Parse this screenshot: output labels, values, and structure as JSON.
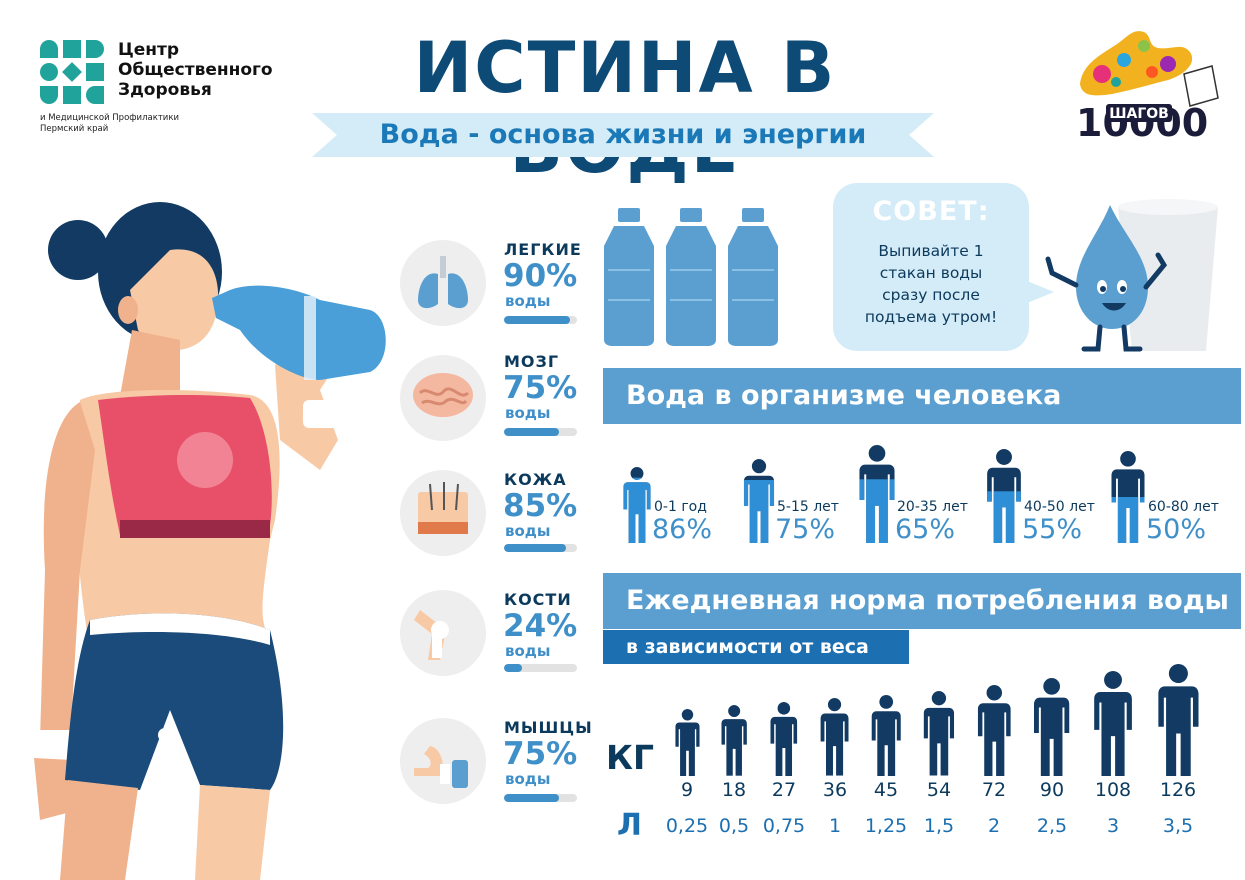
{
  "header": {
    "org_name_lines": [
      "Центр",
      "Общественного",
      "Здоровья"
    ],
    "org_sub_lines": [
      "и Медицинской Профилактики",
      "Пермский край"
    ],
    "title": "ИСТИНА В ВОДЕ",
    "subtitle": "Вода - основа жизни и энергии",
    "steps_logo_number": "10000",
    "steps_logo_word": "ШАГОВ"
  },
  "organs": [
    {
      "name": "ЛЕГКИЕ",
      "percent": "90%",
      "unit": "воды",
      "fill": 0.9
    },
    {
      "name": "МОЗГ",
      "percent": "75%",
      "unit": "воды",
      "fill": 0.75
    },
    {
      "name": "КОЖА",
      "percent": "85%",
      "unit": "воды",
      "fill": 0.85
    },
    {
      "name": "КОСТИ",
      "percent": "24%",
      "unit": "воды",
      "fill": 0.24
    },
    {
      "name": "МЫШЦЫ",
      "percent": "75%",
      "unit": "воды",
      "fill": 0.75
    }
  ],
  "tip": {
    "title": "СОВЕТ:",
    "lines": [
      "Выпивайте 1",
      "стакан воды",
      "сразу после",
      "подъема утром!"
    ]
  },
  "body_water": {
    "title": "Вода в организме человека",
    "groups": [
      {
        "age": "0-1 год",
        "percent": "86%",
        "fill": 0.86
      },
      {
        "age": "5-15 лет",
        "percent": "75%",
        "fill": 0.75
      },
      {
        "age": "20-35 лет",
        "percent": "65%",
        "fill": 0.65
      },
      {
        "age": "40-50 лет",
        "percent": "55%",
        "fill": 0.55
      },
      {
        "age": "60-80 лет",
        "percent": "50%",
        "fill": 0.5
      }
    ]
  },
  "daily_norm": {
    "title": "Ежедневная норма потребления воды",
    "subtitle": "в зависимости от веса",
    "kg_label": "КГ",
    "l_label": "Л",
    "kg": [
      "9",
      "18",
      "27",
      "36",
      "45",
      "54",
      "72",
      "90",
      "108",
      "126"
    ],
    "liters": [
      "0,25",
      "0,5",
      "0,75",
      "1",
      "1,25",
      "1,5",
      "2",
      "2,5",
      "3",
      "3,5"
    ]
  },
  "colors": {
    "navy": "#0c3a5c",
    "accent_blue": "#3f8fc9",
    "section_blue": "#5b9fd0",
    "light_blue": "#d4ecf8",
    "teal": "#1fa39a"
  }
}
